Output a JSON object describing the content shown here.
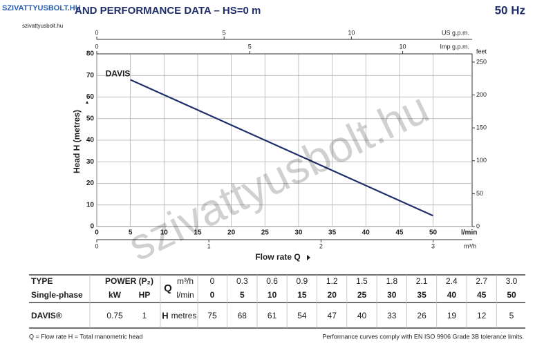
{
  "logo": "SZIVATTYUSBOLT.HU",
  "logo_url": "szivattyusbolt.hu",
  "title": "AND PERFORMANCE DATA – HS=0 m",
  "frequency": "50 Hz",
  "watermark": "szivattyusbolt.hu",
  "chart_data": {
    "type": "line",
    "x": [
      5,
      10,
      15,
      20,
      25,
      30,
      35,
      40,
      45,
      50
    ],
    "series": [
      {
        "name": "DAVIS",
        "color": "#1f2d6b",
        "values": [
          68,
          61,
          54,
          47,
          40,
          33,
          26,
          19,
          12,
          5
        ]
      }
    ],
    "xlim": [
      0,
      55.8
    ],
    "xticks": [
      0,
      5,
      10,
      15,
      20,
      25,
      30,
      35,
      40,
      45,
      50
    ],
    "x_label": "l/min",
    "ylim": [
      0,
      80
    ],
    "yticks": [
      0,
      10,
      20,
      30,
      40,
      50,
      60,
      70,
      80
    ],
    "y_label": "Head H (metres)",
    "y2lim": [
      0,
      262.5
    ],
    "y2ticks": [
      0,
      50,
      100,
      150,
      200,
      250
    ],
    "y2_label": "feet",
    "top_axes": [
      {
        "label": "US g.p.m.",
        "lim": [
          0,
          14.74
        ],
        "ticks": [
          0,
          5,
          10
        ]
      },
      {
        "label": "Imp g.p.m.",
        "lim": [
          0,
          12.27
        ],
        "ticks": [
          0,
          5,
          10
        ]
      }
    ],
    "bottom_axis": {
      "label": "m³/h",
      "lim": [
        0,
        3.348
      ],
      "ticks": [
        0,
        1,
        2,
        3
      ]
    },
    "axis_title": "Flow rate Q",
    "grid": true
  },
  "table": {
    "type_label": "TYPE",
    "type_sub": "Single-phase",
    "power_label": "POWER (P₂)",
    "kw": "kW",
    "hp": "HP",
    "q": "Q",
    "q_m3h": "m³/h",
    "q_lmin": "l/min",
    "h": "H",
    "h_unit": "metres",
    "q_m3h_values": [
      "0",
      "0.3",
      "0.6",
      "0.9",
      "1.2",
      "1.5",
      "1.8",
      "2.1",
      "2.4",
      "2.7",
      "3.0"
    ],
    "q_lmin_values": [
      "0",
      "5",
      "10",
      "15",
      "20",
      "25",
      "30",
      "35",
      "40",
      "45",
      "50"
    ],
    "rows": [
      {
        "type": "DAVIS®",
        "kw": "0.75",
        "hp": "1",
        "h_values": [
          "75",
          "68",
          "61",
          "54",
          "47",
          "40",
          "33",
          "26",
          "19",
          "12",
          "5"
        ]
      }
    ]
  },
  "footer": {
    "legend": "Q = Flow rate   H = Total manometric head",
    "note": "Performance curves comply with EN ISO 9906 Grade 3B tolerance limits."
  }
}
